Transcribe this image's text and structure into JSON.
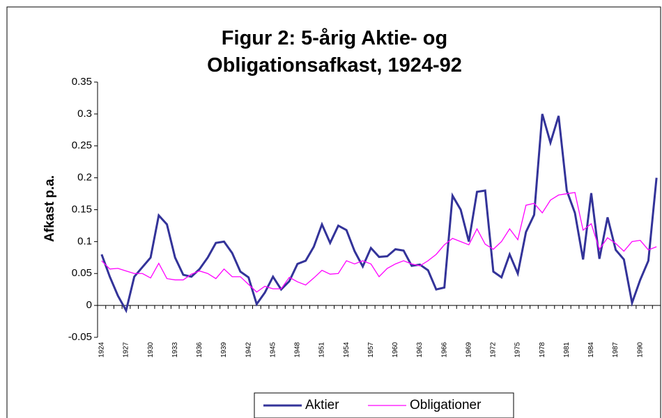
{
  "chart_data": {
    "type": "line",
    "title": "Figur 2: 5-årig Aktie- og Obligationsafkast, 1924-92",
    "y_label": "Afkast p.a.",
    "categories": [
      "1924",
      null,
      null,
      "1927",
      null,
      null,
      "1930",
      null,
      null,
      "1933",
      null,
      null,
      "1936",
      null,
      null,
      "1939",
      null,
      null,
      "1942",
      null,
      null,
      "1945",
      null,
      null,
      "1948",
      null,
      null,
      "1951",
      null,
      null,
      "1954",
      null,
      null,
      "1957",
      null,
      null,
      "1960",
      null,
      null,
      "1963",
      null,
      null,
      "1966",
      null,
      null,
      "1969",
      null,
      null,
      "1972",
      null,
      null,
      "1975",
      null,
      null,
      "1978",
      null,
      null,
      "1981",
      null,
      null,
      "1984",
      null,
      null,
      "1987",
      null,
      null,
      "1990",
      null,
      null
    ],
    "series": [
      {
        "name": "Aktier",
        "color": "#333399",
        "values": [
          0.08,
          0.045,
          0.015,
          -0.008,
          0.045,
          0.06,
          0.075,
          0.141,
          0.127,
          0.075,
          0.048,
          0.045,
          0.057,
          0.075,
          0.098,
          0.1,
          0.082,
          0.053,
          0.044,
          0.002,
          0.02,
          0.045,
          0.025,
          0.038,
          0.065,
          0.07,
          0.092,
          0.127,
          0.098,
          0.125,
          0.118,
          0.085,
          0.061,
          0.09,
          0.076,
          0.077,
          0.088,
          0.086,
          0.062,
          0.064,
          0.055,
          0.025,
          0.028,
          0.172,
          0.15,
          0.1,
          0.178,
          0.18,
          0.053,
          0.044,
          0.08,
          0.05,
          0.115,
          0.142,
          0.3,
          0.255,
          0.297,
          0.18,
          0.145,
          0.072,
          0.176,
          0.073,
          0.138,
          0.087,
          0.072,
          0.004,
          0.04,
          0.07,
          0.2
        ]
      },
      {
        "name": "Obligationer",
        "color": "#ff00ff",
        "values": [
          0.07,
          0.057,
          0.058,
          0.054,
          0.05,
          0.05,
          0.043,
          0.066,
          0.042,
          0.04,
          0.04,
          0.049,
          0.054,
          0.05,
          0.042,
          0.057,
          0.045,
          0.045,
          0.033,
          0.021,
          0.03,
          0.026,
          0.026,
          0.044,
          0.037,
          0.032,
          0.043,
          0.055,
          0.049,
          0.05,
          0.07,
          0.065,
          0.07,
          0.065,
          0.045,
          0.058,
          0.065,
          0.07,
          0.065,
          0.062,
          0.07,
          0.08,
          0.095,
          0.105,
          0.1,
          0.095,
          0.12,
          0.096,
          0.088,
          0.1,
          0.12,
          0.103,
          0.157,
          0.16,
          0.145,
          0.165,
          0.173,
          0.175,
          0.177,
          0.118,
          0.128,
          0.088,
          0.106,
          0.097,
          0.085,
          0.1,
          0.102,
          0.087,
          0.092
        ]
      }
    ],
    "ylim": [
      -0.05,
      0.35
    ],
    "yticks": [
      -0.05,
      0,
      0.05,
      0.1,
      0.15,
      0.2,
      0.25,
      0.3,
      0.35
    ],
    "grid": false,
    "legend": "bottom"
  }
}
